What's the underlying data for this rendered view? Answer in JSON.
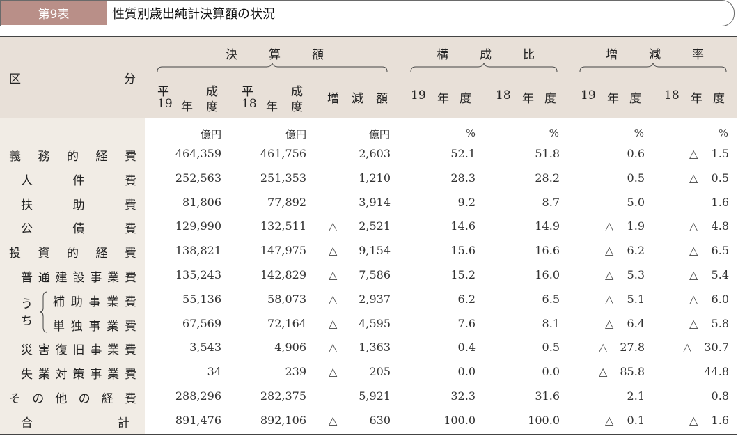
{
  "title": {
    "number": "第9表",
    "text": "性質別歳出純計決算額の状況"
  },
  "header": {
    "division_left": "区",
    "division_right": "分",
    "groups": {
      "settlement": [
        "決",
        "算",
        "額"
      ],
      "composition": [
        "構",
        "成",
        "比"
      ],
      "change_rate": [
        "増",
        "減",
        "率"
      ]
    },
    "col1_line1": [
      "平",
      "成"
    ],
    "col1_line2": [
      "19",
      "年",
      "度"
    ],
    "col2_line1": [
      "平",
      "成"
    ],
    "col2_line2": [
      "18",
      "年",
      "度"
    ],
    "col3": [
      "増",
      "減",
      "額"
    ],
    "col4": [
      "19",
      "年",
      "度"
    ],
    "col5": [
      "18",
      "年",
      "度"
    ],
    "col6": [
      "19",
      "年",
      "度"
    ],
    "col7": [
      "18",
      "年",
      "度"
    ]
  },
  "units": [
    "億円",
    "億円",
    "億円",
    "%",
    "%",
    "%",
    "%"
  ],
  "uchi": [
    "う",
    "ち"
  ],
  "rows": [
    {
      "label": [
        "義",
        "務",
        "的",
        "経",
        "費"
      ],
      "indent": 0,
      "v19": "464,359",
      "v18": "461,756",
      "d_neg": false,
      "diff": "2,603",
      "c19": "52.1",
      "c18": "51.8",
      "r19_neg": false,
      "r19": "0.6",
      "r18_neg": true,
      "r18": "1.5"
    },
    {
      "label": [
        "人",
        "件",
        "費"
      ],
      "indent": 1,
      "v19": "252,563",
      "v18": "251,353",
      "d_neg": false,
      "diff": "1,210",
      "c19": "28.3",
      "c18": "28.2",
      "r19_neg": false,
      "r19": "0.5",
      "r18_neg": true,
      "r18": "0.5"
    },
    {
      "label": [
        "扶",
        "助",
        "費"
      ],
      "indent": 1,
      "v19": "81,806",
      "v18": "77,892",
      "d_neg": false,
      "diff": "3,914",
      "c19": "9.2",
      "c18": "8.7",
      "r19_neg": false,
      "r19": "5.0",
      "r18_neg": false,
      "r18": "1.6"
    },
    {
      "label": [
        "公",
        "債",
        "費"
      ],
      "indent": 1,
      "v19": "129,990",
      "v18": "132,511",
      "d_neg": true,
      "diff": "2,521",
      "c19": "14.6",
      "c18": "14.9",
      "r19_neg": true,
      "r19": "1.9",
      "r18_neg": true,
      "r18": "4.8"
    },
    {
      "label": [
        "投",
        "資",
        "的",
        "経",
        "費"
      ],
      "indent": 0,
      "v19": "138,821",
      "v18": "147,975",
      "d_neg": true,
      "diff": "9,154",
      "c19": "15.6",
      "c18": "16.6",
      "r19_neg": true,
      "r19": "6.2",
      "r18_neg": true,
      "r18": "6.5"
    },
    {
      "label": [
        "普",
        "通",
        "建",
        "設",
        "事",
        "業",
        "費"
      ],
      "indent": 1,
      "v19": "135,243",
      "v18": "142,829",
      "d_neg": true,
      "diff": "7,586",
      "c19": "15.2",
      "c18": "16.0",
      "r19_neg": true,
      "r19": "5.3",
      "r18_neg": true,
      "r18": "5.4"
    },
    {
      "label": [
        "補",
        "助",
        "事",
        "業",
        "費"
      ],
      "indent": 2,
      "v19": "55,136",
      "v18": "58,073",
      "d_neg": true,
      "diff": "2,937",
      "c19": "6.2",
      "c18": "6.5",
      "r19_neg": true,
      "r19": "5.1",
      "r18_neg": true,
      "r18": "6.0"
    },
    {
      "label": [
        "単",
        "独",
        "事",
        "業",
        "費"
      ],
      "indent": 2,
      "v19": "67,569",
      "v18": "72,164",
      "d_neg": true,
      "diff": "4,595",
      "c19": "7.6",
      "c18": "8.1",
      "r19_neg": true,
      "r19": "6.4",
      "r18_neg": true,
      "r18": "5.8"
    },
    {
      "label": [
        "災",
        "害",
        "復",
        "旧",
        "事",
        "業",
        "費"
      ],
      "indent": 1,
      "v19": "3,543",
      "v18": "4,906",
      "d_neg": true,
      "diff": "1,363",
      "c19": "0.4",
      "c18": "0.5",
      "r19_neg": true,
      "r19": "27.8",
      "r18_neg": true,
      "r18": "30.7"
    },
    {
      "label": [
        "失",
        "業",
        "対",
        "策",
        "事",
        "業",
        "費"
      ],
      "indent": 1,
      "v19": "34",
      "v18": "239",
      "d_neg": true,
      "diff": "205",
      "c19": "0.0",
      "c18": "0.0",
      "r19_neg": true,
      "r19": "85.8",
      "r18_neg": false,
      "r18": "44.8"
    },
    {
      "label": [
        "そ",
        "の",
        "他",
        "の",
        "経",
        "費"
      ],
      "indent": 0,
      "v19": "288,296",
      "v18": "282,375",
      "d_neg": false,
      "diff": "5,921",
      "c19": "32.3",
      "c18": "31.6",
      "r19_neg": false,
      "r19": "2.1",
      "r18_neg": false,
      "r18": "0.8"
    },
    {
      "label": [
        "合",
        "計"
      ],
      "indent": 3,
      "v19": "891,476",
      "v18": "892,106",
      "d_neg": true,
      "diff": "630",
      "c19": "100.0",
      "c18": "100.0",
      "r19_neg": true,
      "r19": "0.1",
      "r18_neg": true,
      "r18": "1.6"
    }
  ],
  "triangle_symbol": "△"
}
